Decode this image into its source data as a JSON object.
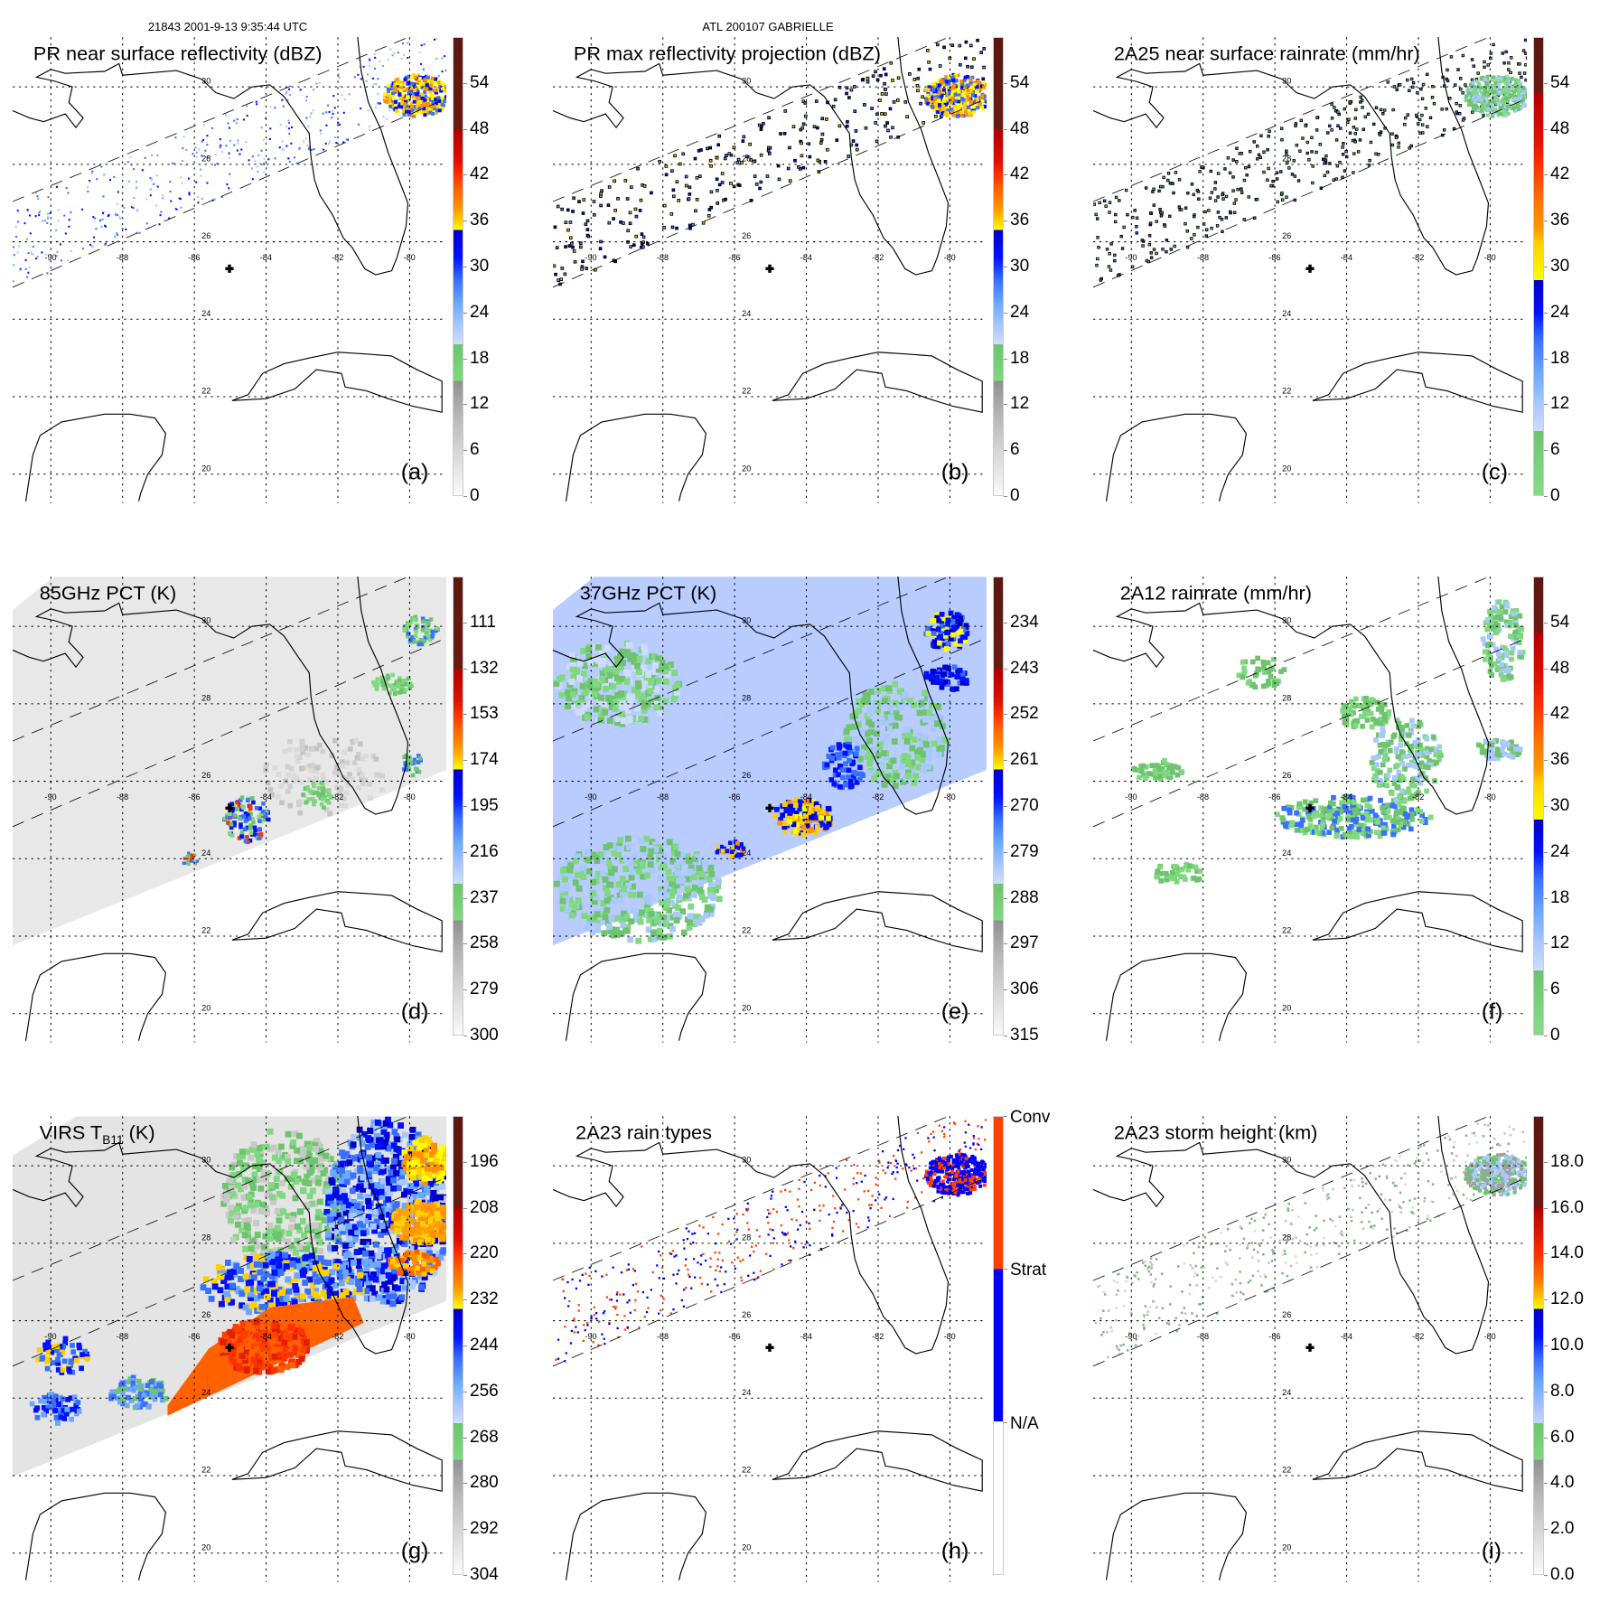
{
  "header": {
    "orbit_time": "21843 2001-9-13 9:35:44 UTC",
    "storm": "ATL 200107 GABRIELLE"
  },
  "map_labels": {
    "lon": [
      "-90",
      "-88",
      "-86",
      "-84",
      "-82",
      "-80"
    ],
    "lat": [
      "30",
      "28",
      "26",
      "24",
      "22",
      "20"
    ]
  },
  "panels": [
    {
      "id": "a",
      "title": "PR near surface reflectivity (dBZ)",
      "letter": "(a)",
      "colorbar": [
        "54",
        "48",
        "42",
        "36",
        "30",
        "24",
        "18",
        "12",
        "6",
        "0"
      ],
      "palette": "dbz"
    },
    {
      "id": "b",
      "title": "PR max reflectivity projection (dBZ)",
      "letter": "(b)",
      "colorbar": [
        "54",
        "48",
        "42",
        "36",
        "30",
        "24",
        "18",
        "12",
        "6",
        "0"
      ],
      "palette": "dbz"
    },
    {
      "id": "c",
      "title": "2A25 near surface rainrate (mm/hr)",
      "letter": "(c)",
      "colorbar": [
        "54",
        "48",
        "42",
        "36",
        "30",
        "24",
        "18",
        "12",
        "6",
        "0"
      ],
      "palette": "rain"
    },
    {
      "id": "d",
      "title": "85GHz PCT (K)",
      "letter": "(d)",
      "colorbar": [
        "111",
        "132",
        "153",
        "174",
        "195",
        "216",
        "237",
        "258",
        "279",
        "300"
      ],
      "palette": "dbz"
    },
    {
      "id": "e",
      "title": "37GHz PCT (K)",
      "letter": "(e)",
      "colorbar": [
        "234",
        "243",
        "252",
        "261",
        "270",
        "279",
        "288",
        "297",
        "306",
        "315"
      ],
      "palette": "dbz"
    },
    {
      "id": "f",
      "title": "2A12 rainrate (mm/hr)",
      "letter": "(f)",
      "colorbar": [
        "54",
        "48",
        "42",
        "36",
        "30",
        "24",
        "18",
        "12",
        "6",
        "0"
      ],
      "palette": "rain"
    },
    {
      "id": "g",
      "title": "VIRS T",
      "title_sub": "B11",
      "title_end": " (K)",
      "letter": "(g)",
      "colorbar": [
        "196",
        "208",
        "220",
        "232",
        "244",
        "256",
        "268",
        "280",
        "292",
        "304"
      ],
      "palette": "dbz"
    },
    {
      "id": "h",
      "title": "2A23 rain types",
      "letter": "(h)",
      "colorbar": [
        "Conv",
        "Strat",
        "N/A"
      ],
      "palette": "types"
    },
    {
      "id": "i",
      "title": "2A23 storm height (km)",
      "letter": "(i)",
      "colorbar": [
        "18.0",
        "16.0",
        "14.0",
        "12.0",
        "10.0",
        "8.0",
        "6.0",
        "4.0",
        "2.0",
        "0.0"
      ],
      "palette": "height"
    }
  ],
  "colors": {
    "convective": "#ff4000",
    "stratiform": "#0000ff",
    "na": "#ffffff"
  }
}
